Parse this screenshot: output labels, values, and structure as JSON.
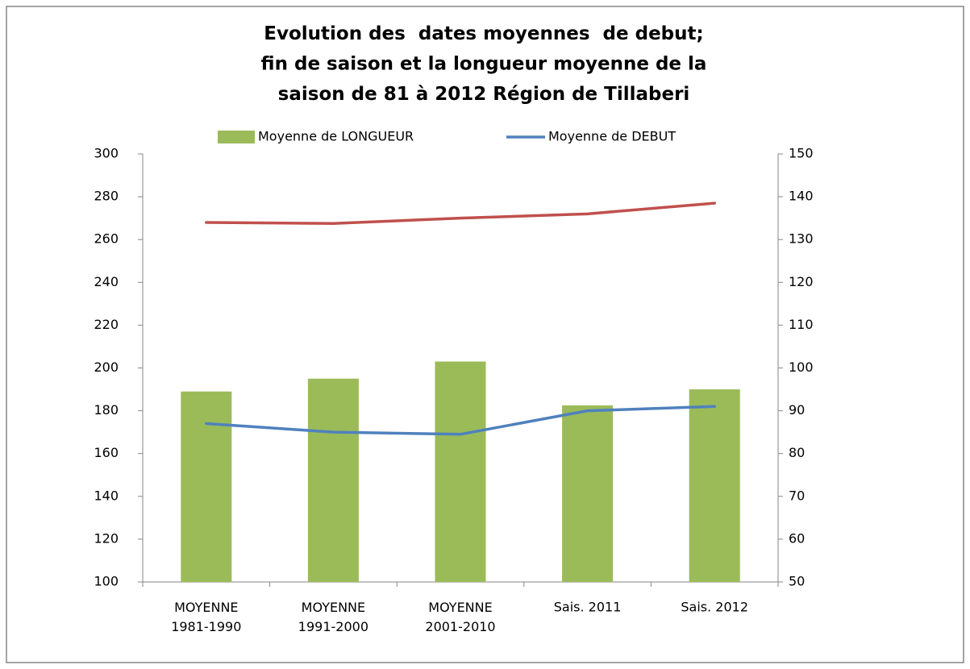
{
  "chart_data": {
    "type": "bar-line",
    "title": "Evolution des  dates moyennes  de debut;\nfin de saison et la longueur moyenne de la\nsaison de 81 à 2012 Région de Tillaberi",
    "categories": [
      "MOYENNE\n1981-1990",
      "MOYENNE\n1991-2000",
      "MOYENNE\n2001-2010",
      "Sais. 2011",
      "Sais. 2012"
    ],
    "series": [
      {
        "name": "Moyenne de LONGUEUR",
        "type": "bar",
        "axis": "y2",
        "color": "#9bbb59",
        "values": [
          94.5,
          97.5,
          101.5,
          91.25,
          95
        ]
      },
      {
        "name": "Moyenne de DEBUT",
        "type": "line",
        "color": "#4f81bd",
        "values": [
          174,
          170,
          169,
          180,
          182
        ]
      },
      {
        "type": "line",
        "color": "#c0504d",
        "values": [
          268,
          267.5,
          270,
          272,
          277
        ]
      }
    ],
    "ylim": [
      100,
      300
    ],
    "yticks": [
      100,
      120,
      140,
      160,
      180,
      200,
      220,
      240,
      260,
      280,
      300
    ],
    "y2lim": [
      50,
      150
    ],
    "y2ticks": [
      50,
      60,
      70,
      80,
      90,
      100,
      110,
      120,
      130,
      140,
      150
    ],
    "legend": "top",
    "grid": false
  }
}
